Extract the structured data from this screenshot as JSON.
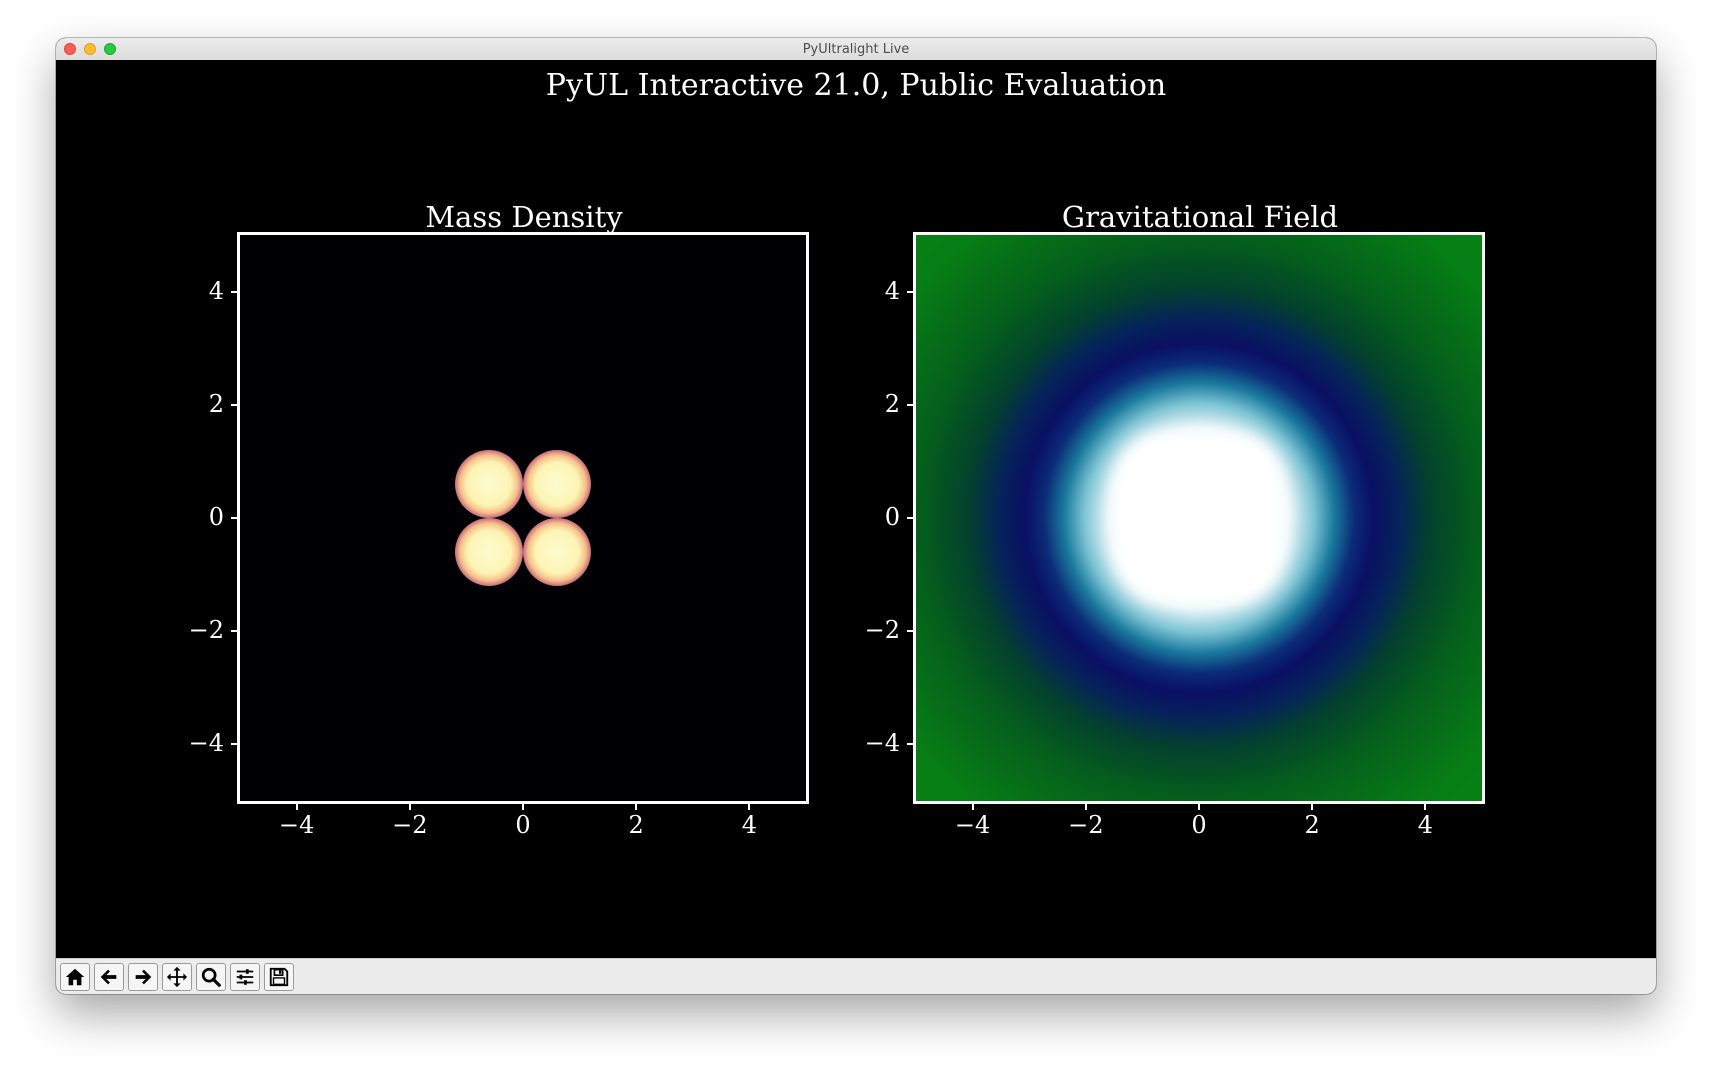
{
  "window": {
    "title": "PyUltralight Live"
  },
  "figure": {
    "title": "PyUL Interactive 21.0, Public Evaluation"
  },
  "toolbar": {
    "icons": [
      "home-icon",
      "back-arrow-icon",
      "forward-arrow-icon",
      "pan-icon",
      "zoom-icon",
      "configure-subplots-icon",
      "save-icon"
    ]
  },
  "colors": {
    "background": "#000000",
    "density_peak": "#fdfbd0",
    "field_center": "#ffffff",
    "field_mid": "#0a0f63",
    "field_outer": "#088510"
  },
  "chart_data": [
    {
      "type": "heatmap",
      "title": "Mass Density",
      "xlabel": "",
      "ylabel": "",
      "xlim": [
        -5,
        5
      ],
      "ylim": [
        -5,
        5
      ],
      "x_ticks": [
        "−4",
        "−2",
        "0",
        "2",
        "4"
      ],
      "y_ticks": [
        "4",
        "2",
        "0",
        "−2",
        "−4"
      ],
      "x_tick_values": [
        -4,
        -2,
        0,
        2,
        4
      ],
      "y_tick_values": [
        4,
        2,
        0,
        -2,
        -4
      ],
      "peaks": [
        {
          "x": -0.6,
          "y": 0.6
        },
        {
          "x": 0.6,
          "y": 0.6
        },
        {
          "x": -0.6,
          "y": -0.6
        },
        {
          "x": 0.6,
          "y": -0.6
        }
      ],
      "peak_radius": 0.6,
      "grid": false
    },
    {
      "type": "heatmap",
      "title": "Gravitational Field",
      "xlabel": "",
      "ylabel": "",
      "xlim": [
        -5,
        5
      ],
      "ylim": [
        -5,
        5
      ],
      "x_ticks": [
        "−4",
        "−2",
        "0",
        "2",
        "4"
      ],
      "y_ticks": [
        "4",
        "2",
        "0",
        "−2",
        "−4"
      ],
      "x_tick_values": [
        -4,
        -2,
        0,
        2,
        4
      ],
      "y_tick_values": [
        4,
        2,
        0,
        -2,
        -4
      ],
      "grid": false
    }
  ]
}
